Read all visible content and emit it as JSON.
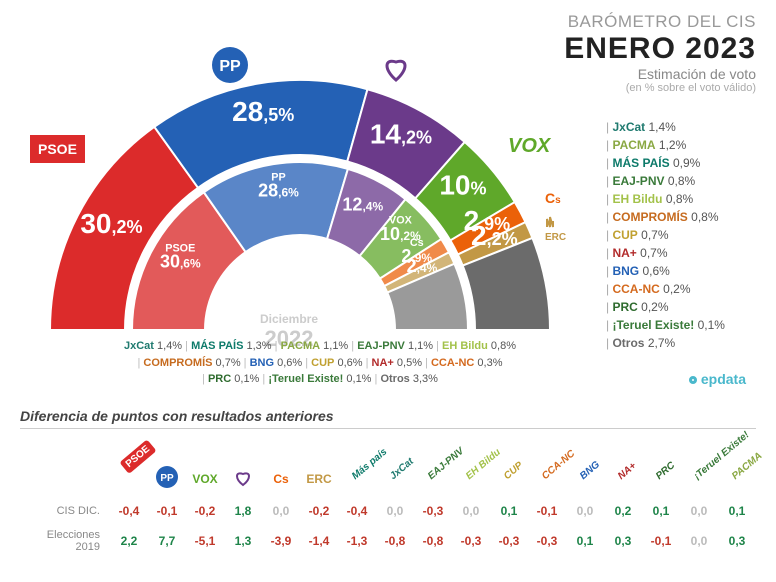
{
  "header": {
    "line1": "BARÓMETRO DEL CIS",
    "line2": "ENERO 2023",
    "line3": "Estimación de voto",
    "line4": "(en % sobre el voto válido)"
  },
  "outer": {
    "segments": [
      {
        "id": "psoe",
        "label": "PSOE",
        "value": "30,2%",
        "pct": 30.2,
        "color": "#dc2b2b",
        "text_color": "#ffffff"
      },
      {
        "id": "pp",
        "label": "PP",
        "value": "28,5%",
        "pct": 28.5,
        "color": "#2461b5",
        "text_color": "#ffffff"
      },
      {
        "id": "podemos",
        "label": "Podemos",
        "value": "14,2%",
        "pct": 14.2,
        "color": "#6b3a8a",
        "text_color": "#ffffff"
      },
      {
        "id": "vox",
        "label": "VOX",
        "value": "10%",
        "pct": 10.0,
        "color": "#5fa82a",
        "text_color": "#ffffff"
      },
      {
        "id": "cs",
        "label": "Cs",
        "value": "2,9%",
        "pct": 2.9,
        "color": "#eb6109",
        "text_color": "#ffffff"
      },
      {
        "id": "erc",
        "label": "ERC",
        "value": "2,2%",
        "pct": 2.2,
        "color": "#c29845",
        "text_color": "#ffffff"
      },
      {
        "id": "otros",
        "label": "Otros",
        "value": "",
        "pct": 12.0,
        "color": "#6b6b6b",
        "text_color": "#ffffff"
      }
    ]
  },
  "inner": {
    "month": "Diciembre",
    "year": "2022",
    "segments": [
      {
        "id": "psoe",
        "label": "PSOE",
        "value": "30,6%",
        "pct": 30.6,
        "color": "#e25a5a"
      },
      {
        "id": "pp",
        "label": "PP",
        "value": "28,6%",
        "pct": 28.6,
        "color": "#5a86c8"
      },
      {
        "id": "podemos",
        "label": "",
        "value": "12,4%",
        "pct": 12.4,
        "color": "#8d6aa8"
      },
      {
        "id": "vox",
        "label": "VOX",
        "value": "10,2%",
        "pct": 10.2,
        "color": "#87bd60"
      },
      {
        "id": "cs",
        "label": "Cs",
        "value": "2,9%",
        "pct": 2.9,
        "color": "#f08a4a"
      },
      {
        "id": "erc",
        "label": "",
        "value": "2,4%",
        "pct": 2.4,
        "color": "#d2b578"
      },
      {
        "id": "otros",
        "label": "",
        "value": "",
        "pct": 12.9,
        "color": "#9a9a9a"
      }
    ]
  },
  "side_legend": [
    {
      "name": "JxCat",
      "value": "1,4%",
      "color": "#1f7a6f"
    },
    {
      "name": "PACMA",
      "value": "1,2%",
      "color": "#8aa843"
    },
    {
      "name": "MÁS PAÍS",
      "value": "0,9%",
      "color": "#0d7a6a"
    },
    {
      "name": "EAJ-PNV",
      "value": "0,8%",
      "color": "#3a7a3a"
    },
    {
      "name": "EH Bildu",
      "value": "0,8%",
      "color": "#a3c24a"
    },
    {
      "name": "COMPROMÍS",
      "value": "0,8%",
      "color": "#c66b1f"
    },
    {
      "name": "CUP",
      "value": "0,7%",
      "color": "#c0a030"
    },
    {
      "name": "NA+",
      "value": "0,7%",
      "color": "#b22b2b"
    },
    {
      "name": "BNG",
      "value": "0,6%",
      "color": "#2461b5"
    },
    {
      "name": "CCA-NC",
      "value": "0,2%",
      "color": "#d46a1f"
    },
    {
      "name": "PRC",
      "value": "0,2%",
      "color": "#2e6b2e"
    },
    {
      "name": "¡Teruel Existe!",
      "value": "0,1%",
      "color": "#3a7a3a"
    },
    {
      "name": "Otros",
      "value": "2,7%",
      "color": "#6b6b6b"
    }
  ],
  "mini_legend": [
    {
      "name": "JxCat",
      "value": "1,4%",
      "color": "#1f7a6f"
    },
    {
      "name": "MÁS PAÍS",
      "value": "1,3%",
      "color": "#0d7a6a"
    },
    {
      "name": "PACMA",
      "value": "1,1%",
      "color": "#8aa843"
    },
    {
      "name": "EAJ-PNV",
      "value": "1,1%",
      "color": "#3a7a3a"
    },
    {
      "name": "EH Bildu",
      "value": "0,8%",
      "color": "#a3c24a"
    },
    {
      "name": "COMPROMÍS",
      "value": "0,7%",
      "color": "#c66b1f"
    },
    {
      "name": "BNG",
      "value": "0,6%",
      "color": "#2461b5"
    },
    {
      "name": "CUP",
      "value": "0,6%",
      "color": "#c0a030"
    },
    {
      "name": "NA+",
      "value": "0,5%",
      "color": "#b22b2b"
    },
    {
      "name": "CCA-NC",
      "value": "0,3%",
      "color": "#d46a1f"
    },
    {
      "name": "PRC",
      "value": "0,1%",
      "color": "#2e6b2e"
    },
    {
      "name": "¡Teruel Existe!",
      "value": "0,1%",
      "color": "#3a7a3a"
    },
    {
      "name": "Otros",
      "value": "3,3%",
      "color": "#6b6b6b"
    }
  ],
  "diff": {
    "title": "Diferencia de puntos con resultados anteriores",
    "rows": [
      {
        "label": "CIS DIC.",
        "values": [
          "-0,4",
          "-0,1",
          "-0,2",
          "1,8",
          "0,0",
          "-0,2",
          "-0,4",
          "0,0",
          "-0,3",
          "0,0",
          "0,1",
          "-0,1",
          "0,0",
          "0,2",
          "0,1",
          "0,0",
          "0,1"
        ]
      },
      {
        "label": "Elecciones 2019",
        "values": [
          "2,2",
          "7,7",
          "-5,1",
          "1,3",
          "-3,9",
          "-1,4",
          "-1,3",
          "-0,8",
          "-0,8",
          "-0,3",
          "-0,3",
          "-0,3",
          "0,1",
          "0,3",
          "-0,1",
          "0,0",
          "0,3"
        ]
      }
    ],
    "parties": [
      {
        "name": "PSOE",
        "color": "#dc2b2b",
        "render": "box"
      },
      {
        "name": "PP",
        "color": "#2461b5",
        "render": "circle"
      },
      {
        "name": "VOX",
        "color": "#5fa82a",
        "render": "text"
      },
      {
        "name": "Podemos",
        "color": "#6b3a8a",
        "render": "heart"
      },
      {
        "name": "Cs",
        "color": "#eb6109",
        "render": "text"
      },
      {
        "name": "ERC",
        "color": "#c29845",
        "render": "text"
      },
      {
        "name": "Más país",
        "color": "#0d7a6a",
        "render": "rot"
      },
      {
        "name": "JxCat",
        "color": "#1f7a6f",
        "render": "rot"
      },
      {
        "name": "EAJ-PNV",
        "color": "#3a7a3a",
        "render": "rot"
      },
      {
        "name": "EH Bildu",
        "color": "#a3c24a",
        "render": "rot"
      },
      {
        "name": "CUP",
        "color": "#c0a030",
        "render": "rot"
      },
      {
        "name": "CCA-NC",
        "color": "#d46a1f",
        "render": "rot"
      },
      {
        "name": "BNG",
        "color": "#2461b5",
        "render": "rot"
      },
      {
        "name": "NA+",
        "color": "#b22b2b",
        "render": "rot"
      },
      {
        "name": "PRC",
        "color": "#2e6b2e",
        "render": "rot"
      },
      {
        "name": "¡Teruel Existe!",
        "color": "#3a7a3a",
        "render": "rot"
      },
      {
        "name": "PACMA",
        "color": "#8aa843",
        "render": "rot"
      }
    ]
  },
  "brand": "epdata",
  "colors": {
    "neg": "#c0392b",
    "pos": "#1e8449",
    "zero": "#bbbbbb"
  }
}
